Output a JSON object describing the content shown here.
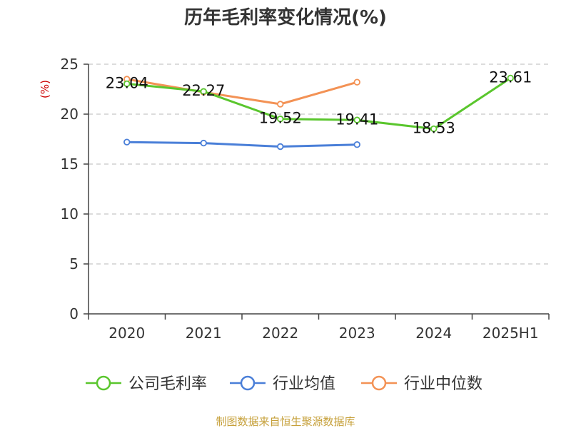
{
  "chart_data": {
    "type": "line",
    "title": "历年毛利率变化情况(%)",
    "ylabel": "(%)",
    "xlabel": "",
    "categories": [
      "2020",
      "2021",
      "2022",
      "2023",
      "2024",
      "2025H1"
    ],
    "ylim": [
      0,
      25
    ],
    "yticks": [
      0,
      5,
      10,
      15,
      20,
      25
    ],
    "grid": true,
    "legend_position": "bottom",
    "series": [
      {
        "name": "公司毛利率",
        "color": "#5ac62d",
        "values": [
          23.04,
          22.27,
          19.52,
          19.41,
          18.53,
          23.61
        ],
        "labels": true
      },
      {
        "name": "行业均值",
        "color": "#4a7fd8",
        "values": [
          17.2,
          17.1,
          16.75,
          16.95,
          null,
          null
        ],
        "labels": false
      },
      {
        "name": "行业中位数",
        "color": "#f39255",
        "values": [
          23.5,
          22.2,
          21.0,
          23.2,
          null,
          null
        ],
        "labels": false
      }
    ]
  },
  "ylabel_color": "#cc0000",
  "source": "制图数据来自恒生聚源数据库",
  "source_color": "#c6a03a"
}
